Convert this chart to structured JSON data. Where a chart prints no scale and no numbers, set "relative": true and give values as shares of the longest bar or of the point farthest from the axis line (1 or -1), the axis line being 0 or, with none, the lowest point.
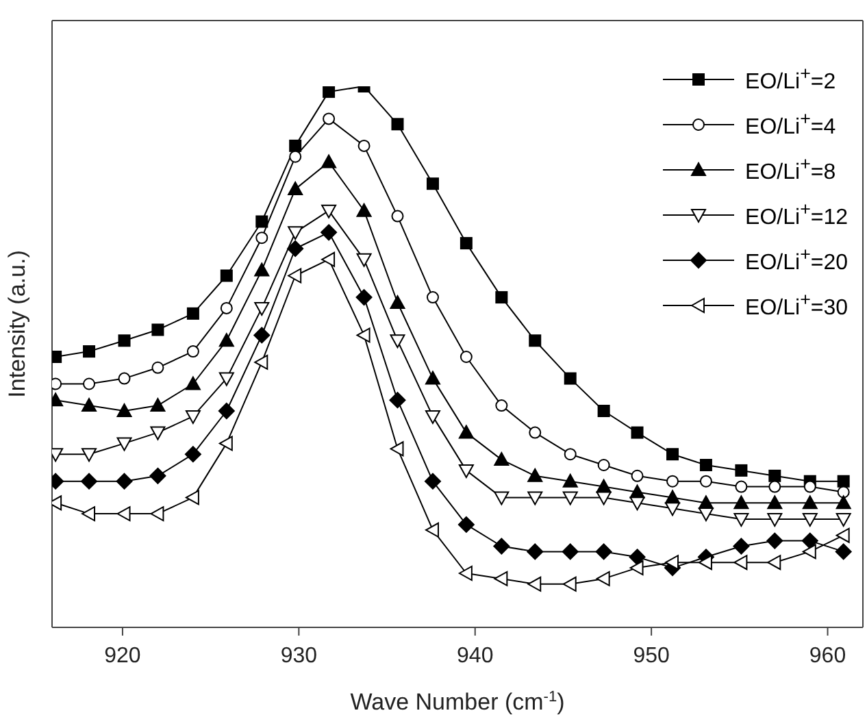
{
  "chart_data": {
    "type": "line",
    "relative": true,
    "xlabel": "Wave Number (cm$^{-1}$)",
    "ylabel": "Intensity (a.u.)",
    "x": [
      916.2,
      918.1,
      920.1,
      922.0,
      924.0,
      925.9,
      927.9,
      929.8,
      931.7,
      933.7,
      935.6,
      937.6,
      939.5,
      941.5,
      943.4,
      945.4,
      947.3,
      949.2,
      951.2,
      953.1,
      955.1,
      957.0,
      959.0,
      960.9
    ],
    "xlim": [
      916,
      962
    ],
    "xticks": [
      920,
      930,
      940,
      950,
      960
    ],
    "grid": false,
    "legend": "top right",
    "line_style": "solid",
    "series": [
      {
        "name": "EO/Li$^{+}$=2",
        "color": "#000000",
        "marker": "square",
        "values": [
          0.5,
          0.51,
          0.53,
          0.55,
          0.58,
          0.65,
          0.75,
          0.89,
          0.99,
          1.0,
          0.93,
          0.82,
          0.71,
          0.61,
          0.53,
          0.46,
          0.4,
          0.36,
          0.32,
          0.3,
          0.29,
          0.28,
          0.27,
          0.27
        ]
      },
      {
        "name": "EO/Li$^{+}$=4",
        "color": "#000000",
        "marker": "circle-open",
        "values": [
          0.45,
          0.45,
          0.46,
          0.48,
          0.51,
          0.59,
          0.72,
          0.87,
          0.94,
          0.89,
          0.76,
          0.61,
          0.5,
          0.41,
          0.36,
          0.32,
          0.3,
          0.28,
          0.27,
          0.27,
          0.26,
          0.26,
          0.26,
          0.25
        ]
      },
      {
        "name": "EO/Li$^{+}$=8",
        "color": "#000000",
        "marker": "triangle",
        "values": [
          0.42,
          0.41,
          0.4,
          0.41,
          0.45,
          0.53,
          0.66,
          0.81,
          0.86,
          0.77,
          0.6,
          0.46,
          0.36,
          0.31,
          0.28,
          0.27,
          0.26,
          0.25,
          0.24,
          0.23,
          0.23,
          0.23,
          0.23,
          0.23
        ]
      },
      {
        "name": "EO/Li$^{+}$=12",
        "color": "#000000",
        "marker": "triangle-down-open",
        "values": [
          0.32,
          0.32,
          0.34,
          0.36,
          0.39,
          0.46,
          0.59,
          0.73,
          0.77,
          0.68,
          0.53,
          0.39,
          0.29,
          0.24,
          0.24,
          0.24,
          0.24,
          0.23,
          0.22,
          0.21,
          0.2,
          0.2,
          0.2,
          0.2
        ]
      },
      {
        "name": "EO/Li$^{+}$=20",
        "color": "#000000",
        "marker": "diamond",
        "values": [
          0.27,
          0.27,
          0.27,
          0.28,
          0.32,
          0.4,
          0.54,
          0.7,
          0.73,
          0.61,
          0.42,
          0.27,
          0.19,
          0.15,
          0.14,
          0.14,
          0.14,
          0.13,
          0.11,
          0.13,
          0.15,
          0.16,
          0.16,
          0.14
        ]
      },
      {
        "name": "EO/Li$^{+}$=30",
        "color": "#000000",
        "marker": "triangle-left-open",
        "values": [
          0.23,
          0.21,
          0.21,
          0.21,
          0.24,
          0.34,
          0.49,
          0.65,
          0.68,
          0.54,
          0.33,
          0.18,
          0.1,
          0.09,
          0.08,
          0.08,
          0.09,
          0.11,
          0.12,
          0.12,
          0.12,
          0.12,
          0.14,
          0.17
        ]
      }
    ]
  }
}
